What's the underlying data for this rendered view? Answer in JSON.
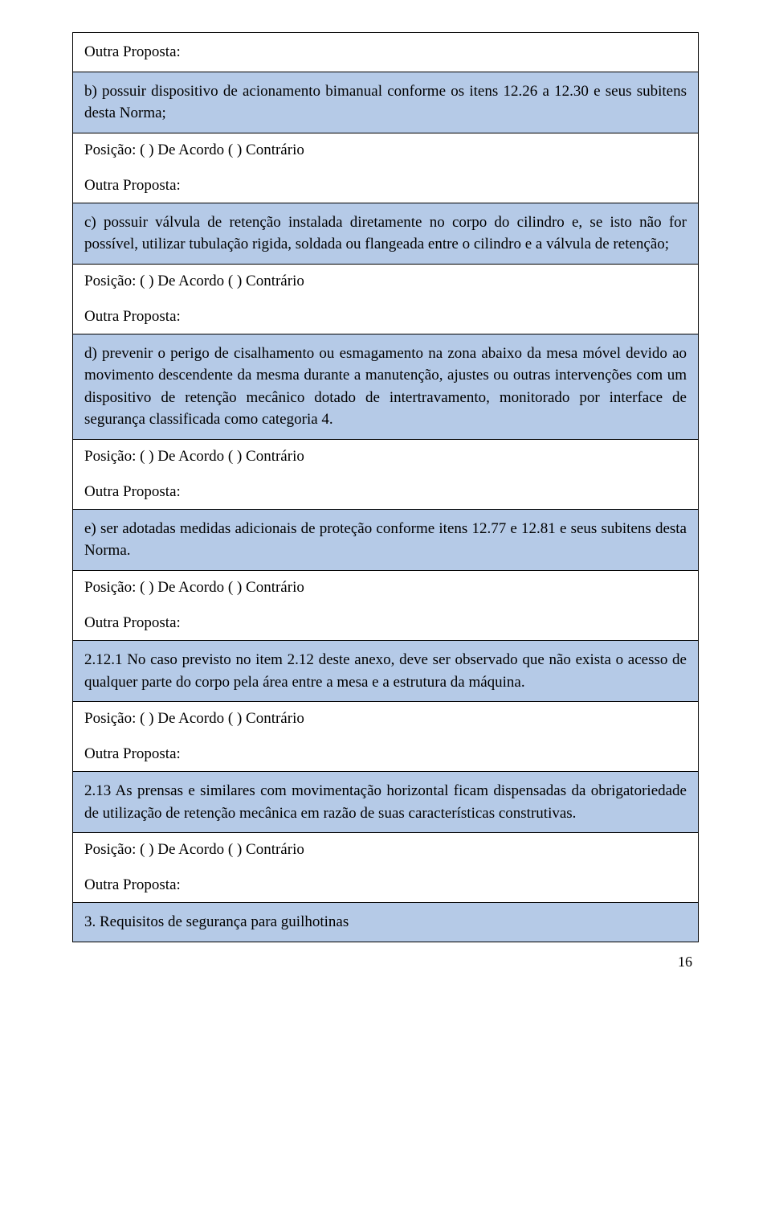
{
  "colors": {
    "highlight_bg": "#b5cae7",
    "plain_bg": "#ffffff",
    "border": "#000000",
    "text": "#000000"
  },
  "typography": {
    "font_family": "Times New Roman",
    "body_fontsize_pt": 14
  },
  "strings": {
    "outra_proposta": "Outra Proposta:",
    "posicao_line": "Posição: (     ) De Acordo (     ) Contrário"
  },
  "cells": {
    "c0": "Outra Proposta:",
    "c1": "b) possuir dispositivo de acionamento bimanual conforme os itens 12.26 a 12.30 e seus subitens desta Norma;",
    "c2": "c) possuir válvula de retenção instalada diretamente no corpo do cilindro e, se isto não for possível, utilizar tubulação rigida, soldada ou flangeada entre o cilindro e a válvula de retenção;",
    "c3": "d) prevenir o perigo de cisalhamento ou esmagamento na zona abaixo da mesa móvel devido ao movimento descendente da mesma durante a manutenção, ajustes ou outras intervenções com um dispositivo de retenção mecânico dotado de intertravamento, monitorado por interface de segurança classificada como categoria 4.",
    "c4": "e) ser adotadas medidas adicionais de proteção conforme itens 12.77 e 12.81 e seus subitens desta Norma.",
    "c5": "2.12.1 No caso previsto no item 2.12 deste anexo, deve ser observado que não exista o acesso de qualquer parte do corpo pela área entre a mesa e a estrutura da máquina.",
    "c6": "2.13 As prensas e similares com movimentação horizontal ficam dispensadas da obrigatoriedade de utilização de retenção mecânica em razão de suas características construtivas.",
    "c7": "3. Requisitos de segurança para guilhotinas"
  },
  "page_number": "16"
}
